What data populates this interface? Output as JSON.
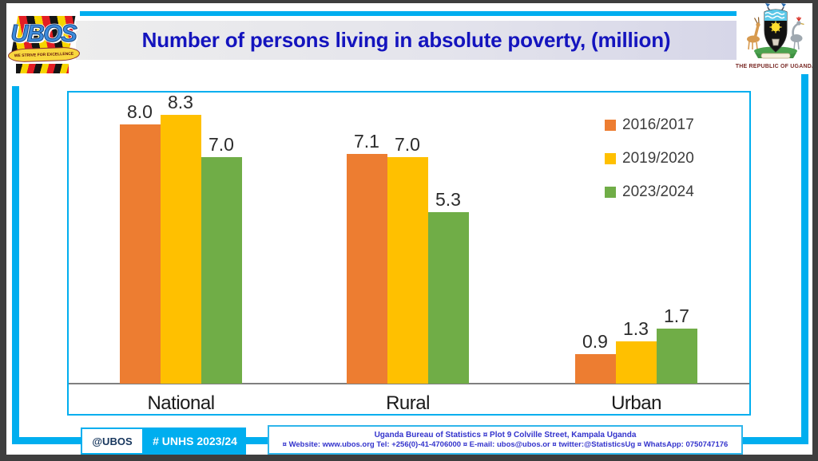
{
  "header": {
    "title": "Number of persons living in absolute poverty, (million)",
    "republic_caption": "THE REPUBLIC OF UGANDA"
  },
  "logo": {
    "name": "UBOS",
    "motto": "WE STRIVE FOR EXCELLENCE"
  },
  "chart_data": {
    "type": "bar",
    "categories": [
      "National",
      "Rural",
      "Urban"
    ],
    "series": [
      {
        "name": "2016/2017",
        "color": "#ED7D31",
        "values": [
          8.0,
          7.1,
          0.9
        ]
      },
      {
        "name": "2019/2020",
        "color": "#FFC000",
        "values": [
          8.3,
          7.0,
          1.3
        ]
      },
      {
        "name": "2023/2024",
        "color": "#70AD47",
        "values": [
          7.0,
          5.3,
          1.7
        ]
      }
    ],
    "ylim": [
      0,
      9
    ],
    "grid": false,
    "legend_position": "top-right",
    "value_labels_shown": true,
    "xlabel": "",
    "ylabel": ""
  },
  "footer": {
    "handle": "@UBOS",
    "hashtag": "# UNHS 2023/24",
    "info_line1": "Uganda Bureau of Statistics ¤ Plot 9 Colville Street, Kampala Uganda",
    "info_line2": "¤ Website: www.ubos.org Tel: +256(0)-41-4706000 ¤ E-mail: ubos@ubos.or ¤ twitter:@StatisticsUg ¤ WhatsApp: 0750747176"
  },
  "colors": {
    "accent_cyan": "#00AEEF",
    "title_blue": "#1414BE",
    "axis_gray": "#7F7F7F",
    "footer_text_blue": "#3333CC",
    "republic_caption_maroon": "#7a2a26"
  }
}
